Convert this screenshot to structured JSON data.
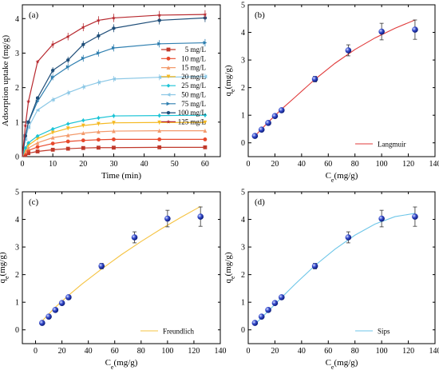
{
  "chart_data": [
    {
      "panel": "(a)",
      "type": "line",
      "xlabel": "Time (min)",
      "ylabel": "Adsorption uptake (mg/g)",
      "xlim": [
        0,
        65
      ],
      "ylim": [
        0,
        4.4
      ],
      "xticks": [
        "0",
        "10",
        "20",
        "30",
        "40",
        "50",
        "60"
      ],
      "yticks": [
        "0",
        "1",
        "2",
        "3",
        "4"
      ],
      "legend_position": "right",
      "x": [
        0,
        1,
        2,
        5,
        10,
        15,
        20,
        25,
        30,
        45,
        60
      ],
      "series": [
        {
          "name": "5 mg/L",
          "color": "#c0392b",
          "marker": "square",
          "values": [
            0,
            0.05,
            0.1,
            0.15,
            0.2,
            0.23,
            0.25,
            0.26,
            0.26,
            0.27,
            0.27
          ]
        },
        {
          "name": "10 mg/L",
          "color": "#e8492c",
          "marker": "circle",
          "values": [
            0,
            0.1,
            0.18,
            0.28,
            0.38,
            0.44,
            0.47,
            0.49,
            0.5,
            0.5,
            0.5
          ]
        },
        {
          "name": "15 mg/L",
          "color": "#f39a6b",
          "marker": "triangle-up",
          "values": [
            0,
            0.15,
            0.25,
            0.4,
            0.55,
            0.62,
            0.68,
            0.72,
            0.74,
            0.75,
            0.75
          ]
        },
        {
          "name": "20 mg/L",
          "color": "#f5b922",
          "marker": "triangle-down",
          "values": [
            0,
            0.2,
            0.33,
            0.52,
            0.7,
            0.82,
            0.9,
            0.95,
            0.98,
            0.99,
            0.99
          ]
        },
        {
          "name": "25 mg/L",
          "color": "#1bc4d6",
          "marker": "diamond",
          "values": [
            0,
            0.25,
            0.4,
            0.6,
            0.8,
            0.95,
            1.05,
            1.12,
            1.18,
            1.19,
            1.2
          ]
        },
        {
          "name": "50 mg/L",
          "color": "#8cc8e6",
          "marker": "triangle-left",
          "values": [
            0,
            0.5,
            0.85,
            1.35,
            1.65,
            1.85,
            2.02,
            2.15,
            2.25,
            2.3,
            2.32
          ]
        },
        {
          "name": "75 mg/L",
          "color": "#2f7fb0",
          "marker": "triangle-right",
          "values": [
            0,
            0.6,
            1.0,
            1.6,
            2.3,
            2.6,
            2.85,
            3.0,
            3.15,
            3.27,
            3.3
          ]
        },
        {
          "name": "100 mg/L",
          "color": "#1f4e79",
          "marker": "hexagon",
          "values": [
            0,
            0.6,
            1.0,
            1.7,
            2.5,
            2.8,
            3.25,
            3.5,
            3.72,
            3.95,
            4.02
          ]
        },
        {
          "name": "125 mg/L",
          "color": "#b7282e",
          "marker": "star",
          "values": [
            0,
            0.9,
            1.6,
            2.75,
            3.25,
            3.48,
            3.75,
            3.95,
            4.02,
            4.1,
            4.12
          ]
        }
      ]
    },
    {
      "panel": "(b)",
      "type": "scatter",
      "xlabel": "C",
      "xlabel_sub": "e",
      "xlabel_unit": "(mg/g)",
      "ylabel": "q",
      "ylabel_sub": "e",
      "ylabel_unit": "(mg/g)",
      "xlim": [
        0,
        140
      ],
      "ylim": [
        -0.5,
        5
      ],
      "xticks": [
        "0",
        "20",
        "40",
        "60",
        "80",
        "100",
        "120",
        "140"
      ],
      "yticks": [
        "0",
        "1",
        "2",
        "3",
        "4",
        "5"
      ],
      "points": {
        "x": [
          5,
          10,
          15,
          20,
          25,
          50,
          75,
          100,
          125
        ],
        "y": [
          0.25,
          0.48,
          0.72,
          0.97,
          1.18,
          2.31,
          3.35,
          4.03,
          4.1
        ],
        "err": [
          0.05,
          0.05,
          0.05,
          0.05,
          0.06,
          0.1,
          0.2,
          0.3,
          0.35
        ]
      },
      "fit": {
        "name": "Langmuir",
        "color": "#e03a3a",
        "x": [
          5,
          15,
          25,
          35,
          50,
          65,
          80,
          95,
          110,
          125
        ],
        "y": [
          0.25,
          0.75,
          1.22,
          1.65,
          2.3,
          2.88,
          3.38,
          3.8,
          4.15,
          4.45
        ]
      },
      "legend_position": "bottom-right"
    },
    {
      "panel": "(c)",
      "type": "scatter",
      "xlabel": "C",
      "xlabel_sub": "e",
      "xlabel_unit": "(mg/g)",
      "ylabel": "q",
      "ylabel_sub": "e",
      "ylabel_unit": "(mg/g)",
      "xlim": [
        -10,
        140
      ],
      "ylim": [
        -0.5,
        5
      ],
      "xticks": [
        "0",
        "20",
        "40",
        "60",
        "80",
        "100",
        "120",
        "140"
      ],
      "yticks": [
        "0",
        "1",
        "2",
        "3",
        "4",
        "5"
      ],
      "points": {
        "x": [
          5,
          10,
          15,
          20,
          25,
          50,
          75,
          100,
          125
        ],
        "y": [
          0.25,
          0.48,
          0.72,
          0.97,
          1.18,
          2.31,
          3.35,
          4.03,
          4.1
        ],
        "err": [
          0.05,
          0.05,
          0.05,
          0.05,
          0.06,
          0.1,
          0.2,
          0.3,
          0.35
        ]
      },
      "fit": {
        "name": "Freundlich",
        "color": "#f5c342",
        "x": [
          5,
          15,
          25,
          35,
          50,
          65,
          80,
          95,
          110,
          125
        ],
        "y": [
          0.32,
          0.82,
          1.25,
          1.65,
          2.2,
          2.72,
          3.2,
          3.65,
          4.07,
          4.47
        ]
      },
      "legend_position": "bottom-right"
    },
    {
      "panel": "(d)",
      "type": "scatter",
      "xlabel": "C",
      "xlabel_sub": "e",
      "xlabel_unit": "(mg/g)",
      "ylabel": "q",
      "ylabel_sub": "e",
      "ylabel_unit": "(mg/g)",
      "xlim": [
        0,
        140
      ],
      "ylim": [
        -0.5,
        5
      ],
      "xticks": [
        "0",
        "20",
        "40",
        "60",
        "80",
        "100",
        "120",
        "140"
      ],
      "yticks": [
        "0",
        "1",
        "2",
        "3",
        "4",
        "5"
      ],
      "points": {
        "x": [
          5,
          10,
          15,
          20,
          25,
          50,
          75,
          100,
          125
        ],
        "y": [
          0.25,
          0.48,
          0.72,
          0.97,
          1.18,
          2.31,
          3.35,
          4.03,
          4.1
        ],
        "err": [
          0.05,
          0.05,
          0.05,
          0.05,
          0.06,
          0.1,
          0.2,
          0.3,
          0.35
        ]
      },
      "fit": {
        "name": "Sips",
        "color": "#6ec6e8",
        "x": [
          5,
          15,
          25,
          35,
          50,
          65,
          80,
          95,
          110,
          125
        ],
        "y": [
          0.2,
          0.68,
          1.17,
          1.65,
          2.33,
          2.92,
          3.43,
          3.83,
          4.1,
          4.22
        ]
      },
      "legend_position": "bottom-right"
    }
  ]
}
